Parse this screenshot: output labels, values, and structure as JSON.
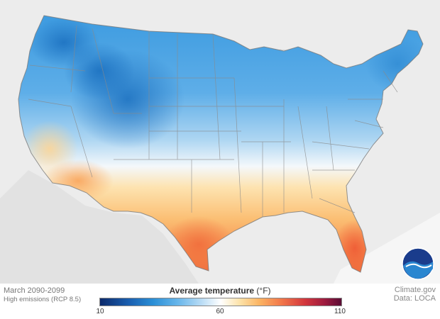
{
  "map": {
    "period": "March 2090-2099",
    "scenario": "High emissions (RCP 8.5)",
    "region": "Contiguous United States",
    "logo": "noaa-logo"
  },
  "legend": {
    "title": "Average temperature",
    "unit": "(°F)",
    "ticks": [
      "10",
      "60",
      "110"
    ],
    "min": 10,
    "mid": 60,
    "max": 110,
    "colors": {
      "cold": "#0c2a6b",
      "cool": "#2b8fd6",
      "neutral": "#ffffff",
      "warm": "#fbb463",
      "hot": "#d2363d",
      "extreme": "#5a0b34"
    }
  },
  "credits": {
    "source": "Climate.gov",
    "data": "Data: LOCA"
  },
  "colors": {
    "background_land": "#ececec",
    "water": "#f8f8f8",
    "state_borders": "#8a8a8a"
  }
}
